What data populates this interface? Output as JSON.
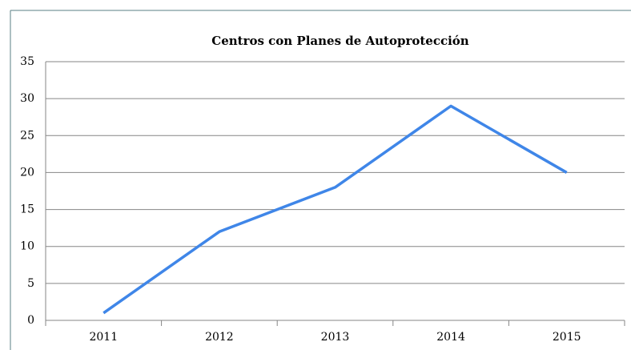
{
  "chart_data": {
    "type": "line",
    "title": "Centros con Planes de Autoprotección",
    "categories": [
      "2011",
      "2012",
      "2013",
      "2014",
      "2015"
    ],
    "values": [
      1,
      12,
      18,
      29,
      20
    ],
    "color": "#3f86e8",
    "ylim": [
      0,
      35
    ],
    "yticks": [
      0,
      5,
      10,
      15,
      20,
      25,
      30,
      35
    ],
    "grid": true
  }
}
